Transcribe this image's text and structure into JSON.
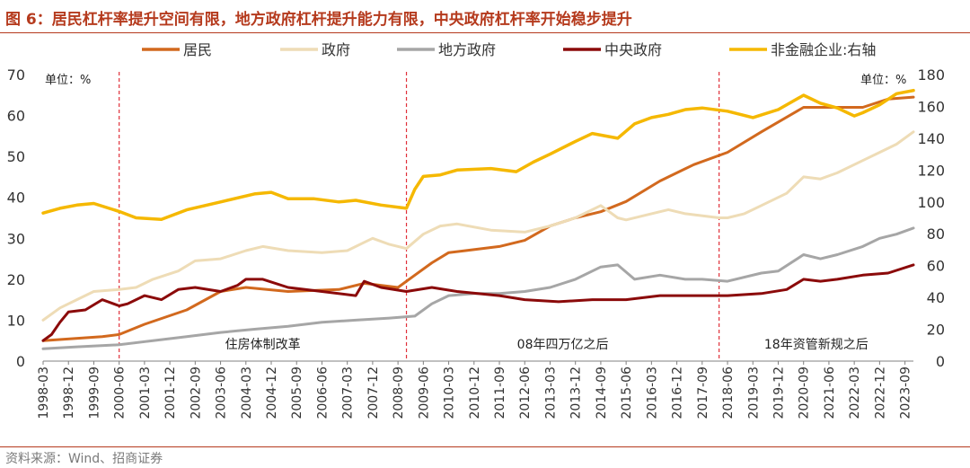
{
  "header": {
    "title": "图 6：居民杠杆率提升空间有限，地方政府杠杆提升能力有限，中央政府杠杆率开始稳步提升"
  },
  "footer": {
    "source": "资料来源：Wind、招商证券"
  },
  "colors": {
    "居民": "#d2691e",
    "政府": "#eedcb6",
    "地方政府": "#a6a6a6",
    "中央政府": "#8b0a0a",
    "非金融企业:右轴": "#f5b800",
    "divider": "#e0303a"
  },
  "chart_data": {
    "type": "line",
    "x_start": "1998-03",
    "x_end": "2023-12",
    "x_ticks": [
      "1998-03",
      "1998-12",
      "1999-09",
      "2000-06",
      "2001-03",
      "2001-12",
      "2002-09",
      "2003-06",
      "2004-03",
      "2004-12",
      "2005-09",
      "2006-06",
      "2007-03",
      "2007-12",
      "2008-09",
      "2009-06",
      "2010-03",
      "2010-12",
      "2011-09",
      "2012-06",
      "2013-03",
      "2013-12",
      "2014-09",
      "2015-06",
      "2016-03",
      "2016-12",
      "2017-09",
      "2018-06",
      "2019-03",
      "2019-12",
      "2020-09",
      "2021-06",
      "2022-03",
      "2022-12",
      "2023-09"
    ],
    "y_left": {
      "min": 0,
      "max": 70,
      "ticks": [
        0,
        10,
        20,
        30,
        40,
        50,
        60,
        70
      ],
      "unit_label": "单位：%"
    },
    "y_right": {
      "min": 0,
      "max": 180,
      "ticks": [
        0,
        20,
        40,
        60,
        80,
        100,
        120,
        140,
        160,
        180
      ],
      "unit_label": "单位：%"
    },
    "legend_position": "top",
    "dividers": [
      {
        "date": "2000-06",
        "label": "住房体制改革"
      },
      {
        "date": "2008-12",
        "label": "08年四万亿之后"
      },
      {
        "date": "2018-03",
        "label": "18年资管新规之后"
      }
    ],
    "series": [
      {
        "name": "居民",
        "axis": "left",
        "width": 3,
        "points": [
          [
            "1998-03",
            5
          ],
          [
            "1999-12",
            6
          ],
          [
            "2000-06",
            6.5
          ],
          [
            "2001-03",
            9
          ],
          [
            "2002-06",
            12.5
          ],
          [
            "2003-06",
            17
          ],
          [
            "2004-03",
            18
          ],
          [
            "2005-06",
            17
          ],
          [
            "2006-12",
            17.5
          ],
          [
            "2007-09",
            19
          ],
          [
            "2008-09",
            18
          ],
          [
            "2009-03",
            21
          ],
          [
            "2009-09",
            24
          ],
          [
            "2010-03",
            26.5
          ],
          [
            "2010-09",
            27
          ],
          [
            "2011-09",
            28
          ],
          [
            "2012-06",
            29.5
          ],
          [
            "2013-03",
            33
          ],
          [
            "2013-12",
            35
          ],
          [
            "2014-09",
            36.5
          ],
          [
            "2015-06",
            39
          ],
          [
            "2016-06",
            44
          ],
          [
            "2017-06",
            48
          ],
          [
            "2018-06",
            51
          ],
          [
            "2019-06",
            56
          ],
          [
            "2020-09",
            62
          ],
          [
            "2021-06",
            62
          ],
          [
            "2022-06",
            62
          ],
          [
            "2023-03",
            64
          ],
          [
            "2023-12",
            64.5
          ]
        ]
      },
      {
        "name": "政府",
        "axis": "left",
        "width": 3,
        "points": [
          [
            "1998-03",
            10
          ],
          [
            "1998-09",
            13
          ],
          [
            "1999-03",
            15
          ],
          [
            "1999-09",
            17
          ],
          [
            "2000-06",
            17.5
          ],
          [
            "2000-12",
            18
          ],
          [
            "2001-06",
            20
          ],
          [
            "2002-03",
            22
          ],
          [
            "2002-09",
            24.5
          ],
          [
            "2003-06",
            25
          ],
          [
            "2004-03",
            27
          ],
          [
            "2004-09",
            28
          ],
          [
            "2005-06",
            27
          ],
          [
            "2006-06",
            26.5
          ],
          [
            "2007-03",
            27
          ],
          [
            "2007-09",
            29
          ],
          [
            "2007-12",
            30
          ],
          [
            "2008-06",
            28.5
          ],
          [
            "2008-12",
            27.5
          ],
          [
            "2009-06",
            31
          ],
          [
            "2009-12",
            33
          ],
          [
            "2010-06",
            33.5
          ],
          [
            "2011-06",
            32
          ],
          [
            "2012-06",
            31.5
          ],
          [
            "2013-03",
            33
          ],
          [
            "2013-12",
            35
          ],
          [
            "2014-09",
            38
          ],
          [
            "2015-03",
            35
          ],
          [
            "2015-06",
            34.5
          ],
          [
            "2016-03",
            36
          ],
          [
            "2016-09",
            37
          ],
          [
            "2017-03",
            36
          ],
          [
            "2018-03",
            35
          ],
          [
            "2018-06",
            35
          ],
          [
            "2018-12",
            36
          ],
          [
            "2019-06",
            38
          ],
          [
            "2020-03",
            41
          ],
          [
            "2020-09",
            45
          ],
          [
            "2021-03",
            44.5
          ],
          [
            "2021-09",
            46
          ],
          [
            "2022-06",
            49
          ],
          [
            "2022-12",
            51
          ],
          [
            "2023-06",
            53
          ],
          [
            "2023-12",
            56
          ]
        ]
      },
      {
        "name": "地方政府",
        "axis": "left",
        "width": 3,
        "points": [
          [
            "1998-03",
            3
          ],
          [
            "1999-03",
            3.5
          ],
          [
            "2000-06",
            4
          ],
          [
            "2001-06",
            5
          ],
          [
            "2002-06",
            6
          ],
          [
            "2003-06",
            7
          ],
          [
            "2004-06",
            7.8
          ],
          [
            "2005-06",
            8.5
          ],
          [
            "2006-06",
            9.5
          ],
          [
            "2007-06",
            10
          ],
          [
            "2008-06",
            10.5
          ],
          [
            "2009-03",
            11
          ],
          [
            "2009-09",
            14
          ],
          [
            "2010-03",
            16
          ],
          [
            "2010-12",
            16.5
          ],
          [
            "2011-09",
            16.5
          ],
          [
            "2012-06",
            17
          ],
          [
            "2013-03",
            18
          ],
          [
            "2013-12",
            20
          ],
          [
            "2014-09",
            23
          ],
          [
            "2015-03",
            23.5
          ],
          [
            "2015-09",
            20
          ],
          [
            "2016-06",
            21
          ],
          [
            "2017-03",
            20
          ],
          [
            "2017-09",
            20
          ],
          [
            "2018-06",
            19.5
          ],
          [
            "2019-06",
            21.5
          ],
          [
            "2019-12",
            22
          ],
          [
            "2020-09",
            26
          ],
          [
            "2021-03",
            25
          ],
          [
            "2021-09",
            26
          ],
          [
            "2022-06",
            28
          ],
          [
            "2022-12",
            30
          ],
          [
            "2023-06",
            31
          ],
          [
            "2023-12",
            32.5
          ]
        ]
      },
      {
        "name": "中央政府",
        "axis": "left",
        "width": 3,
        "points": [
          [
            "1998-03",
            5
          ],
          [
            "1998-06",
            6.5
          ],
          [
            "1998-09",
            9.5
          ],
          [
            "1998-12",
            12
          ],
          [
            "1999-06",
            12.5
          ],
          [
            "1999-12",
            15
          ],
          [
            "2000-06",
            13.5
          ],
          [
            "2000-09",
            14
          ],
          [
            "2001-03",
            16
          ],
          [
            "2001-09",
            15
          ],
          [
            "2002-03",
            17.5
          ],
          [
            "2002-09",
            18
          ],
          [
            "2003-06",
            17
          ],
          [
            "2003-12",
            18.5
          ],
          [
            "2004-03",
            20
          ],
          [
            "2004-09",
            20
          ],
          [
            "2005-06",
            18
          ],
          [
            "2006-06",
            17
          ],
          [
            "2007-06",
            16
          ],
          [
            "2007-09",
            19.5
          ],
          [
            "2008-03",
            18
          ],
          [
            "2008-12",
            17
          ],
          [
            "2009-09",
            18
          ],
          [
            "2010-06",
            17
          ],
          [
            "2011-09",
            16
          ],
          [
            "2012-06",
            15
          ],
          [
            "2013-06",
            14.5
          ],
          [
            "2014-06",
            15
          ],
          [
            "2015-06",
            15
          ],
          [
            "2016-06",
            16
          ],
          [
            "2017-06",
            16
          ],
          [
            "2018-06",
            16
          ],
          [
            "2019-06",
            16.5
          ],
          [
            "2020-03",
            17.5
          ],
          [
            "2020-09",
            20
          ],
          [
            "2021-03",
            19.5
          ],
          [
            "2021-09",
            20
          ],
          [
            "2022-06",
            21
          ],
          [
            "2023-03",
            21.5
          ],
          [
            "2023-12",
            23.5
          ]
        ]
      },
      {
        "name": "非金融企业:右轴",
        "axis": "right",
        "width": 3.5,
        "points": [
          [
            "1998-03",
            93
          ],
          [
            "1998-09",
            96
          ],
          [
            "1999-03",
            98
          ],
          [
            "1999-09",
            99
          ],
          [
            "2000-06",
            94
          ],
          [
            "2000-12",
            90
          ],
          [
            "2001-09",
            89
          ],
          [
            "2002-06",
            95
          ],
          [
            "2003-06",
            100
          ],
          [
            "2004-06",
            105
          ],
          [
            "2004-12",
            106
          ],
          [
            "2005-06",
            102
          ],
          [
            "2006-03",
            102
          ],
          [
            "2006-12",
            100
          ],
          [
            "2007-06",
            101
          ],
          [
            "2008-03",
            98
          ],
          [
            "2008-12",
            96
          ],
          [
            "2009-03",
            108
          ],
          [
            "2009-06",
            116
          ],
          [
            "2009-12",
            117
          ],
          [
            "2010-06",
            120
          ],
          [
            "2011-06",
            121
          ],
          [
            "2012-03",
            119
          ],
          [
            "2012-09",
            125
          ],
          [
            "2013-03",
            130
          ],
          [
            "2013-12",
            138
          ],
          [
            "2014-06",
            143
          ],
          [
            "2015-03",
            140
          ],
          [
            "2015-09",
            149
          ],
          [
            "2016-03",
            153
          ],
          [
            "2016-09",
            155
          ],
          [
            "2017-03",
            158
          ],
          [
            "2017-09",
            159
          ],
          [
            "2018-06",
            157
          ],
          [
            "2019-03",
            153
          ],
          [
            "2019-12",
            158
          ],
          [
            "2020-09",
            167
          ],
          [
            "2021-03",
            162
          ],
          [
            "2021-09",
            159
          ],
          [
            "2022-03",
            154
          ],
          [
            "2022-06",
            156
          ],
          [
            "2022-12",
            161
          ],
          [
            "2023-06",
            168
          ],
          [
            "2023-12",
            170
          ]
        ]
      }
    ]
  }
}
